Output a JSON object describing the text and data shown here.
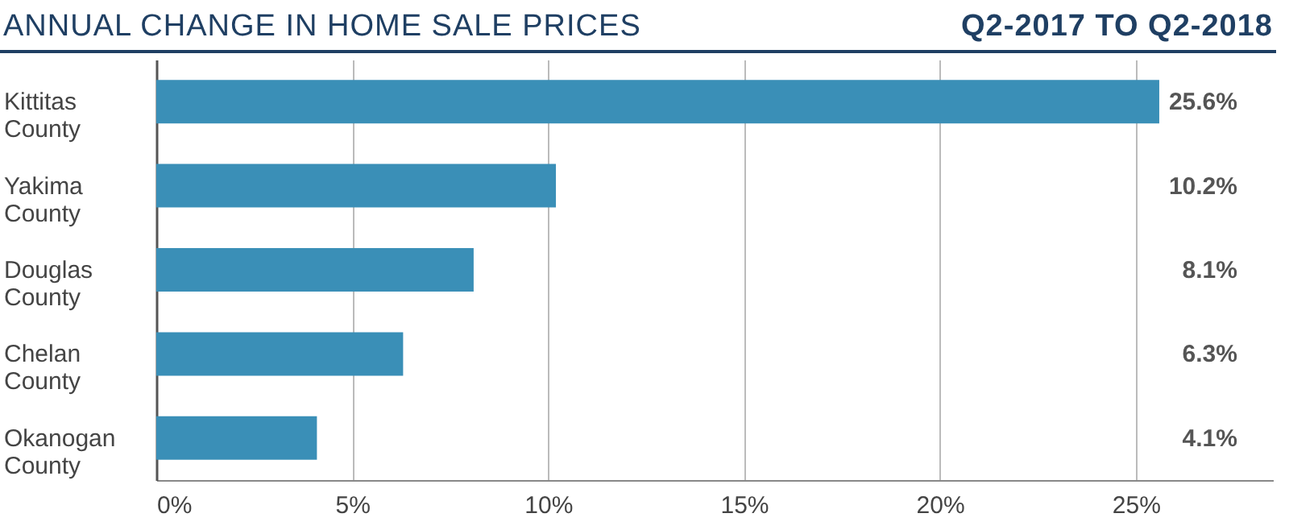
{
  "chart_data": {
    "type": "bar",
    "orientation": "horizontal",
    "title": "ANNUAL CHANGE IN HOME SALE PRICES",
    "subtitle": "Q2-2017 TO Q2-2018",
    "categories": [
      "Kittitas County",
      "Yakima County",
      "Douglas County",
      "Chelan County",
      "Okanogan County"
    ],
    "values": [
      25.6,
      10.2,
      8.1,
      6.3,
      4.1
    ],
    "value_labels": [
      "25.6%",
      "10.2%",
      "8.1%",
      "6.3%",
      "4.1%"
    ],
    "color": "#3a8fb7",
    "xlim": [
      0,
      28.5
    ],
    "xticks": [
      {
        "value": 0,
        "label": "0%"
      },
      {
        "value": 5,
        "label": "5%"
      },
      {
        "value": 10,
        "label": "10%"
      },
      {
        "value": 15,
        "label": "15%"
      },
      {
        "value": 20,
        "label": "20%"
      },
      {
        "value": 25,
        "label": "25%"
      }
    ],
    "grid": "x"
  }
}
